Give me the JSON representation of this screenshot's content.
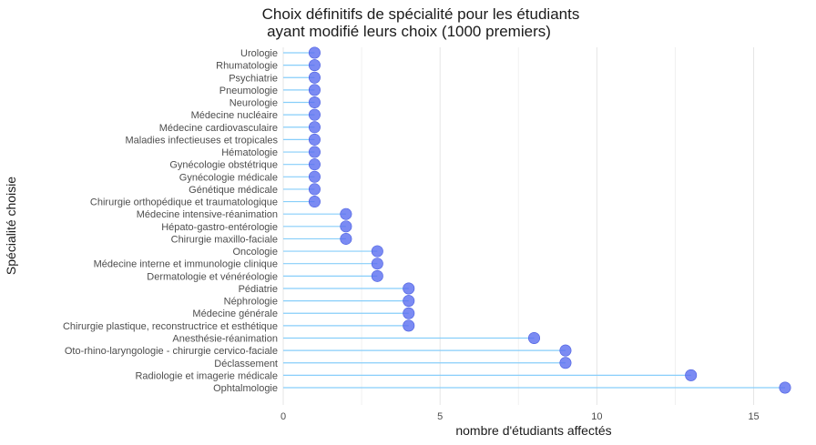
{
  "chart_data": {
    "type": "lollipop",
    "title_lines": [
      "Choix définitifs de spécialité pour les étudiants",
      "ayant modifié leurs choix (1000 premiers)"
    ],
    "xlabel": "nombre d'étudiants affectés",
    "ylabel": "Spécialité choisie",
    "xlim": [
      0,
      16
    ],
    "x_ticks": [
      0,
      5,
      10,
      15
    ],
    "x_minor_ticks": [
      2.5,
      7.5,
      12.5
    ],
    "colors": {
      "stem": "#87cefa",
      "point": "#5a6ef0"
    },
    "categories": [
      "Urologie",
      "Rhumatologie",
      "Psychiatrie",
      "Pneumologie",
      "Neurologie",
      "Médecine nucléaire",
      "Médecine cardiovasculaire",
      "Maladies infectieuses et tropicales",
      "Hématologie",
      "Gynécologie obstétrique",
      "Gynécologie médicale",
      "Génétique médicale",
      "Chirurgie orthopédique et traumatologique",
      "Médecine intensive-réanimation",
      "Hépato-gastro-entérologie",
      "Chirurgie maxillo-faciale",
      "Oncologie",
      "Médecine interne et immunologie clinique",
      "Dermatologie et vénéréologie",
      "Pédiatrie",
      "Néphrologie",
      "Médecine générale",
      "Chirurgie plastique, reconstructrice et esthétique",
      "Anesthésie-réanimation",
      "Oto-rhino-laryngologie - chirurgie cervico-faciale",
      "Déclassement",
      "Radiologie et imagerie médicale",
      "Ophtalmologie"
    ],
    "values": [
      1,
      1,
      1,
      1,
      1,
      1,
      1,
      1,
      1,
      1,
      1,
      1,
      1,
      2,
      2,
      2,
      3,
      3,
      3,
      4,
      4,
      4,
      4,
      8,
      9,
      9,
      13,
      16
    ]
  }
}
